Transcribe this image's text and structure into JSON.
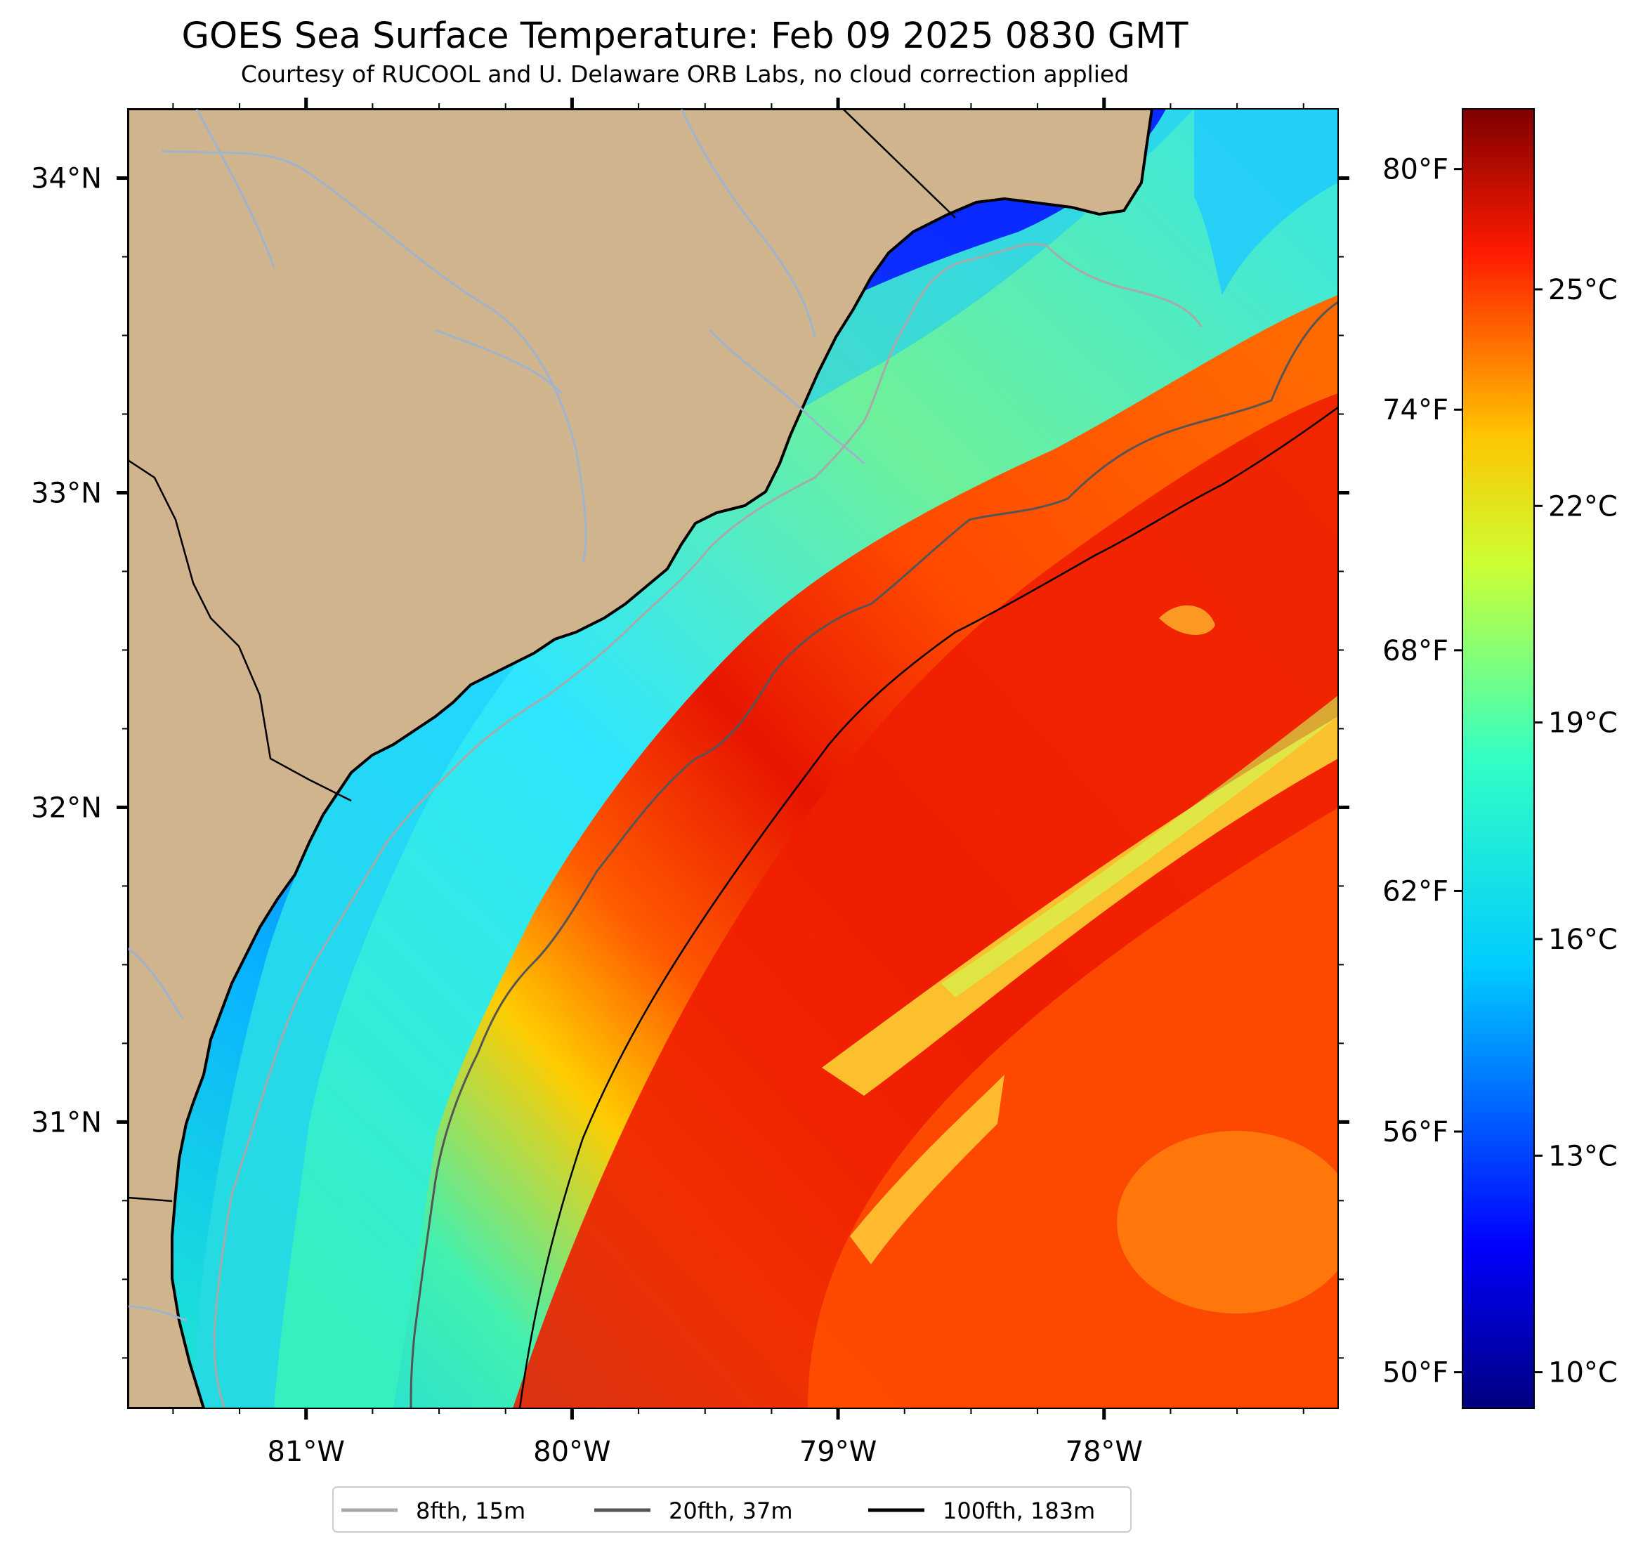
{
  "title": "GOES Sea Surface Temperature: Feb 09 2025 0830 GMT",
  "subtitle": "Courtesy of RUCOOL and U. Delaware ORB Labs, no cloud correction applied",
  "map": {
    "lon_range": [
      -81.67,
      -77.12
    ],
    "lat_range": [
      30.09,
      34.22
    ],
    "lon_ticks": [
      {
        "value": -81,
        "label": "81°W"
      },
      {
        "value": -80,
        "label": "80°W"
      },
      {
        "value": -79,
        "label": "79°W"
      },
      {
        "value": -78,
        "label": "78°W"
      }
    ],
    "lat_ticks": [
      {
        "value": 34,
        "label": "34°N"
      },
      {
        "value": 33,
        "label": "33°N"
      },
      {
        "value": 32,
        "label": "32°N"
      },
      {
        "value": 31,
        "label": "31°N"
      }
    ],
    "land_color": "#d0b48d",
    "coastline_color": "#000000",
    "river_color": "#9fb4cc"
  },
  "legend": {
    "items": [
      {
        "label": "8fth, 15m",
        "color": "#a9a9a9"
      },
      {
        "label": "20fth, 37m",
        "color": "#555555"
      },
      {
        "label": "100fth, 183m",
        "color": "#000000"
      }
    ]
  },
  "colorbar": {
    "colormap": "jet",
    "range_c": [
      9.5,
      27.5
    ],
    "range_f": [
      49.1,
      81.5
    ],
    "fahrenheit_ticks": [
      {
        "value": 80,
        "label": "80°F"
      },
      {
        "value": 74,
        "label": "74°F"
      },
      {
        "value": 68,
        "label": "68°F"
      },
      {
        "value": 62,
        "label": "62°F"
      },
      {
        "value": 56,
        "label": "56°F"
      },
      {
        "value": 50,
        "label": "50°F"
      }
    ],
    "celsius_ticks": [
      {
        "value": 25,
        "label": "25°C"
      },
      {
        "value": 22,
        "label": "22°C"
      },
      {
        "value": 19,
        "label": "19°C"
      },
      {
        "value": 16,
        "label": "16°C"
      },
      {
        "value": 13,
        "label": "13°C"
      },
      {
        "value": 10,
        "label": "10°C"
      }
    ]
  }
}
